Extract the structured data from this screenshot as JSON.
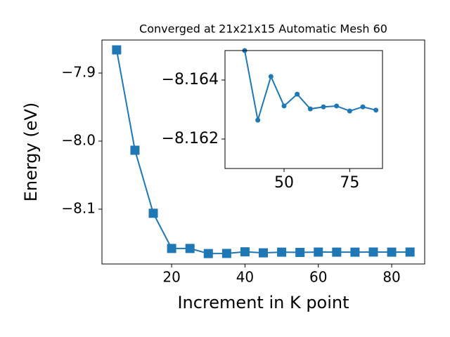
{
  "chart_data": [
    {
      "type": "line",
      "title": "Converged at 21x21x15 Automatic Mesh 60",
      "xlabel": "Increment in K point",
      "ylabel": "Energy (eV)",
      "x": [
        5,
        10,
        15,
        20,
        25,
        30,
        35,
        40,
        45,
        50,
        55,
        60,
        65,
        70,
        75,
        80,
        85
      ],
      "series": [
        {
          "color": "#1f77b4",
          "marker": "square",
          "values": [
            -7.866,
            -8.0134,
            -8.106,
            -8.1577,
            -8.1577,
            -8.1652,
            -8.165,
            -8.16264,
            -8.16412,
            -8.16312,
            -8.16352,
            -8.16302,
            -8.16309,
            -8.16312,
            -8.16295,
            -8.16309,
            -8.16298
          ]
        }
      ],
      "xlim": [
        1,
        89
      ],
      "ylim": [
        -8.1805,
        -7.8515
      ],
      "xticks": [
        20,
        40,
        60,
        80
      ],
      "yticks": [
        {
          "value": -8.1,
          "label": "−8.1"
        },
        {
          "value": -8.0,
          "label": "−8.0"
        },
        {
          "value": -7.9,
          "label": "−7.9"
        }
      ]
    },
    {
      "type": "line",
      "x": [
        35,
        40,
        45,
        50,
        55,
        60,
        65,
        70,
        75,
        80,
        85
      ],
      "series": [
        {
          "color": "#1f77b4",
          "marker": "circle",
          "values": [
            -8.165,
            -8.16264,
            -8.16412,
            -8.16312,
            -8.16352,
            -8.16302,
            -8.16309,
            -8.16312,
            -8.16295,
            -8.16309,
            -8.16298
          ]
        }
      ],
      "xlim": [
        27.5,
        87.5
      ],
      "ylim": [
        -8.161,
        -8.165
      ],
      "xticks": [
        50,
        75
      ],
      "yticks": [
        {
          "value": -8.162,
          "label": "−8.162"
        },
        {
          "value": -8.164,
          "label": "−8.164"
        }
      ]
    }
  ]
}
